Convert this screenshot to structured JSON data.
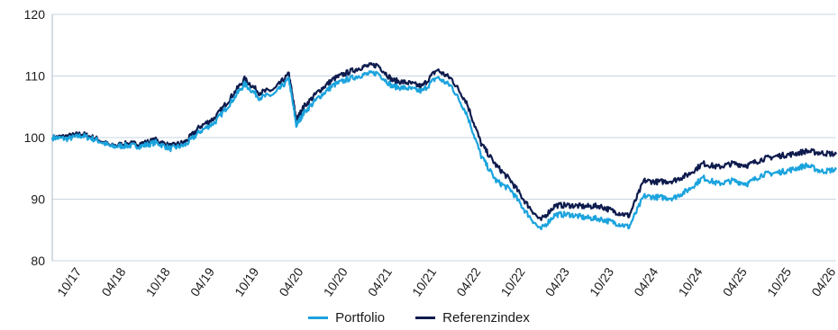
{
  "chart_data": {
    "type": "line",
    "ylim": [
      80,
      120
    ],
    "y_ticks": [
      "80",
      "90",
      "100",
      "110",
      "120"
    ],
    "x_ticks": [
      "10/17",
      "04/18",
      "10/18",
      "04/19",
      "10/19",
      "04/20",
      "10/20",
      "04/21",
      "10/21",
      "04/22",
      "10/22",
      "04/23",
      "10/23",
      "04/24",
      "10/24",
      "04/25",
      "10/25",
      "04/26"
    ],
    "grid": "horizontal",
    "legend_position": "bottom-center",
    "colors": {
      "portfolio": "#1ba3dd",
      "referenzindex": "#0e1b4d",
      "grid": "#c9d5e0",
      "axis": "#aab8c5"
    },
    "x": [
      "2017-06",
      "2017-08",
      "2017-10",
      "2017-12",
      "2018-02",
      "2018-04",
      "2018-06",
      "2018-08",
      "2018-10",
      "2018-12",
      "2019-02",
      "2019-04",
      "2019-06",
      "2019-08",
      "2019-10",
      "2019-12",
      "2020-02",
      "2020-03",
      "2020-04",
      "2020-06",
      "2020-08",
      "2020-10",
      "2020-12",
      "2021-02",
      "2021-04",
      "2021-06",
      "2021-08",
      "2021-10",
      "2021-12",
      "2022-02",
      "2022-04",
      "2022-06",
      "2022-08",
      "2022-10",
      "2022-12",
      "2023-02",
      "2023-04",
      "2023-06",
      "2023-08",
      "2023-10",
      "2023-12",
      "2024-02",
      "2024-04",
      "2024-06",
      "2024-08",
      "2024-10",
      "2024-12",
      "2025-02",
      "2025-04",
      "2025-06",
      "2025-08",
      "2025-10",
      "2025-12",
      "2026-02",
      "2026-04"
    ],
    "series": [
      {
        "name": "Portfolio",
        "values": [
          100,
          99.8,
          100.3,
          99.6,
          98.5,
          98.7,
          98.6,
          99.2,
          98.2,
          98.8,
          101,
          102.5,
          105.5,
          108.7,
          106.5,
          107,
          109.5,
          102,
          104,
          106.5,
          108.5,
          109.5,
          110.2,
          110.5,
          108.3,
          108,
          107.5,
          109.8,
          108.3,
          104,
          97,
          93,
          91.5,
          88,
          85,
          87.5,
          87.5,
          87,
          86.8,
          86.2,
          85.5,
          90.5,
          90.3,
          90.2,
          91.5,
          93.5,
          92.5,
          93,
          92.5,
          94,
          94.3,
          94.8,
          95.5,
          94.5,
          94.8
        ]
      },
      {
        "name": "Referenzindex",
        "values": [
          100,
          100.2,
          100.6,
          99.8,
          98.6,
          99,
          99,
          99.6,
          98.6,
          99.3,
          101.8,
          103.2,
          106.3,
          109.5,
          107.3,
          107.8,
          110.3,
          102.8,
          105,
          107.5,
          109.5,
          110.6,
          111.5,
          111.8,
          109.3,
          108.9,
          108.3,
          111,
          109.5,
          105.8,
          99,
          95.5,
          93,
          89.5,
          86.5,
          89,
          89,
          88.8,
          88.9,
          88,
          87.3,
          93,
          92.8,
          93,
          94,
          95.8,
          95.2,
          95.8,
          95.5,
          96.5,
          97,
          97.3,
          97.8,
          97.5,
          97.3
        ]
      }
    ]
  }
}
